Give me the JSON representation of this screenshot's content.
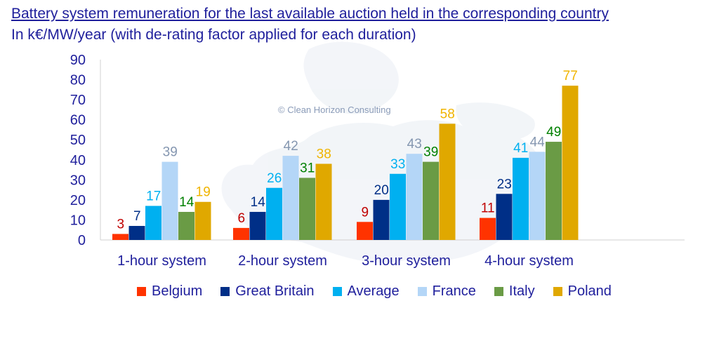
{
  "title": "Battery system remuneration for the last available auction held in the corresponding country",
  "subtitle": "In k€/MW/year (with de-rating factor applied for each duration)",
  "watermark": "© Clean Horizon Consulting",
  "chart_data": {
    "type": "bar",
    "categories": [
      "1-hour system",
      "2-hour system",
      "3-hour system",
      "4-hour system"
    ],
    "series": [
      {
        "name": "Belgium",
        "values": [
          3,
          6,
          9,
          11
        ],
        "color": "#ff3300",
        "label_color": "#c00000"
      },
      {
        "name": "Great Britain",
        "values": [
          7,
          14,
          20,
          23
        ],
        "color": "#002f87",
        "label_color": "#002f87"
      },
      {
        "name": "Average",
        "values": [
          17,
          26,
          33,
          41
        ],
        "color": "#00b0f0",
        "label_color": "#00b0f0"
      },
      {
        "name": "France",
        "values": [
          39,
          42,
          43,
          44
        ],
        "color": "#b4d6f7",
        "label_color": "#8496b0"
      },
      {
        "name": "Italy",
        "values": [
          14,
          31,
          39,
          49
        ],
        "color": "#6a9b45",
        "label_color": "#008000"
      },
      {
        "name": "Poland",
        "values": [
          19,
          38,
          58,
          77
        ],
        "color": "#e0a800",
        "label_color": "#f0b400"
      }
    ],
    "ylim": [
      0,
      90
    ],
    "yticks": [
      0,
      10,
      20,
      30,
      40,
      50,
      60,
      70,
      80,
      90
    ],
    "grid": false,
    "legend": "bottom"
  }
}
